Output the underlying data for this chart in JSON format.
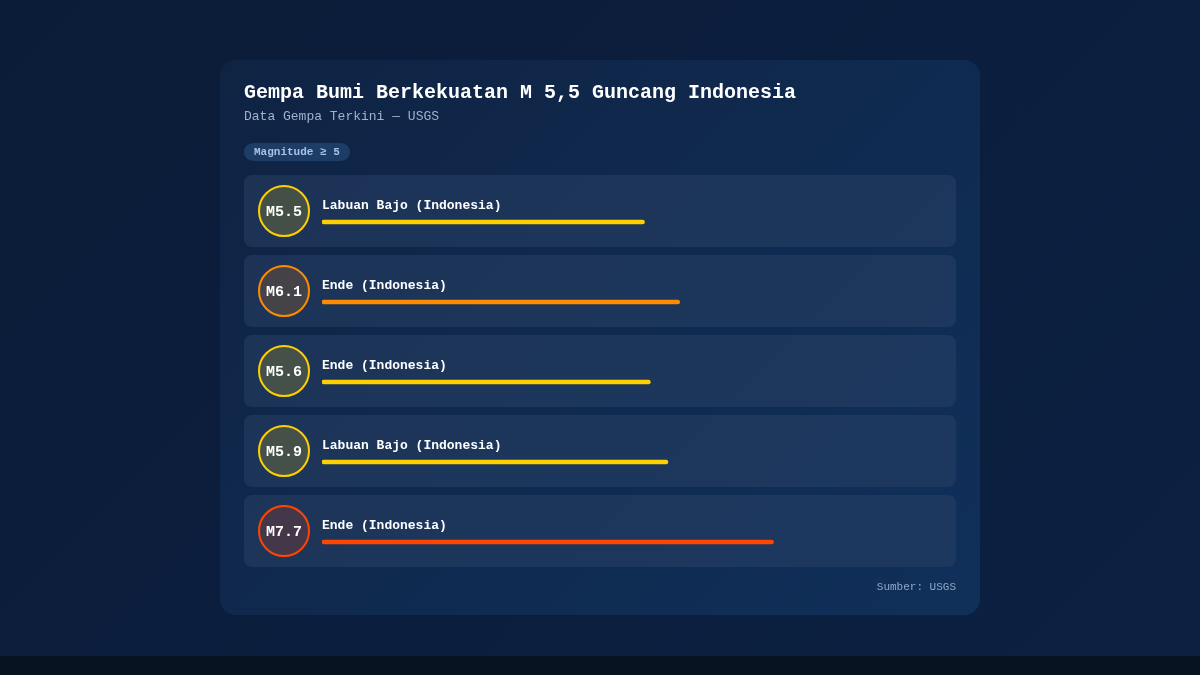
{
  "chart_data": {
    "type": "bar",
    "orientation": "horizontal",
    "title": "Gempa Bumi Berkekuatan M 5,5 Guncang Indonesia",
    "subtitle": "Data Gempa Terkini — USGS",
    "categories": [
      "Labuan Bajo (Indonesia)",
      "Ende (Indonesia)",
      "Ende (Indonesia)",
      "Labuan Bajo (Indonesia)",
      "Ende (Indonesia)"
    ],
    "values": [
      5.5,
      6.1,
      5.6,
      5.9,
      7.7
    ],
    "value_labels": [
      "M5.5",
      "M6.1",
      "M5.6",
      "M5.9",
      "M7.7"
    ],
    "colors": [
      "#ffd000",
      "#ff8c00",
      "#ffd000",
      "#ffd000",
      "#ff4500"
    ],
    "annotations": [
      "Magnitude ≥ 5",
      "Sumber: USGS"
    ]
  }
}
